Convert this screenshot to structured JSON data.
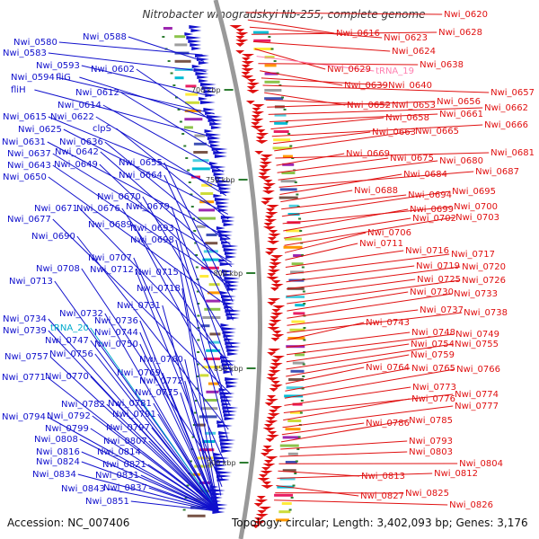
{
  "title": "Nitrobacter winogradskyi Nb-255, complete genome",
  "footer": {
    "accession": "Accession: NC_007406",
    "topology": "Topology: circular; Length: 3,402,093 bp; Genes: 3,176"
  },
  "colors": {
    "left_strand": "#1010cc",
    "right_strand": "#e01010",
    "rna": "#ff80b0",
    "trna_left": "#00aacc",
    "backbone": "#999999"
  },
  "ticks": [
    "700 kbp",
    "750 kbp",
    "800 kbp",
    "850 kbp",
    "900 kbp"
  ],
  "left_labels": [
    "Nwi_0580",
    "Nwi_0583",
    "Nwi_0588",
    "Nwi_0593",
    "Nwi_0594",
    "fliG",
    "fliH",
    "Nwi_0602",
    "Nwi_0612",
    "Nwi_0614",
    "Nwi_0615",
    "Nwi_0622",
    "Nwi_0625",
    "clpS",
    "Nwi_0631",
    "Nwi_0636",
    "Nwi_0637",
    "Nwi_0642",
    "Nwi_0643",
    "Nwi_0649",
    "Nwi_0650",
    "Nwi_0655",
    "Nwi_0664",
    "Nwi_0670",
    "Nwi_0671",
    "Nwi_0676",
    "Nwi_0679",
    "Nwi_0677",
    "Nwi_0689",
    "Nwi_0693",
    "Nwi_0690",
    "Nwi_0698",
    "Nwi_0707",
    "Nwi_0708",
    "Nwi_0712",
    "Nwi_0715",
    "Nwi_0713",
    "Nwi_0718",
    "Nwi_0731",
    "Nwi_0732",
    "Nwi_0734",
    "Nwi_0736",
    "Nwi_0739",
    "tRNA_20",
    "Nwi_0744",
    "Nwi_0747",
    "Nwi_0750",
    "Nwi_0756",
    "Nwi_0757",
    "Nwi_0760",
    "Nwi_0769",
    "Nwi_0770",
    "Nwi_0771",
    "Nwi_0772",
    "Nwi_0775",
    "Nwi_0782",
    "Nwi_0781",
    "Nwi_0791",
    "Nwi_0792",
    "Nwi_0794",
    "Nwi_0797",
    "Nwi_0799",
    "Nwi_0807",
    "Nwi_0808",
    "Nwi_0814",
    "Nwi_0816",
    "Nwi_0821",
    "Nwi_0824",
    "Nwi_0831",
    "Nwi_0834",
    "Nwi_0837",
    "Nwi_0843",
    "Nwi_0851"
  ],
  "right_labels": [
    "Nwi_0620",
    "Nwi_0616",
    "Nwi_0623",
    "Nwi_0628",
    "Nwi_0624",
    "Nwi_0629",
    "tRNA_19",
    "Nwi_0638",
    "Nwi_0639",
    "Nwi_0640",
    "Nwi_0657",
    "Nwi_0652",
    "Nwi_0653",
    "Nwi_0656",
    "Nwi_0662",
    "Nwi_0661",
    "Nwi_0658",
    "Nwi_0666",
    "Nwi_0663",
    "Nwi_0665",
    "Nwi_0681",
    "Nwi_0669",
    "Nwi_0675",
    "Nwi_0680",
    "Nwi_0687",
    "Nwi_0684",
    "Nwi_0688",
    "Nwi_0694",
    "Nwi_0695",
    "Nwi_0700",
    "Nwi_0699",
    "Nwi_0702",
    "Nwi_0703",
    "Nwi_0706",
    "Nwi_0711",
    "Nwi_0716",
    "Nwi_0717",
    "Nwi_0719",
    "Nwi_0720",
    "Nwi_0725",
    "Nwi_0726",
    "Nwi_0730",
    "Nwi_0733",
    "Nwi_0737",
    "Nwi_0738",
    "Nwi_0743",
    "Nwi_0748",
    "Nwi_0749",
    "Nwi_0754",
    "Nwi_0755",
    "Nwi_0759",
    "Nwi_0764",
    "Nwi_0765",
    "Nwi_0766",
    "Nwi_0773",
    "Nwi_0774",
    "Nwi_0776",
    "Nwi_0777",
    "Nwi_0786",
    "Nwi_0785",
    "Nwi_0793",
    "Nwi_0803",
    "Nwi_0804",
    "Nwi_0813",
    "Nwi_0812",
    "Nwi_0827",
    "Nwi_0825",
    "Nwi_0826"
  ]
}
